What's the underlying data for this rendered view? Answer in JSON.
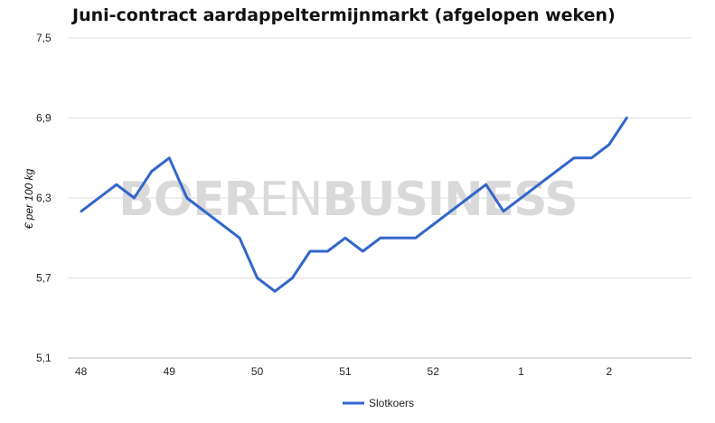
{
  "chart_data": {
    "type": "line",
    "title": "Juni-contract aardappeltermijnmarkt (afgelopen weken)",
    "xlabel": "",
    "ylabel": "€ per 100 kg",
    "x_tick_labels": [
      "48",
      "49",
      "50",
      "51",
      "52",
      "1",
      "2"
    ],
    "y_tick_labels": [
      "7,5",
      "6,9",
      "6,3",
      "5,7",
      "5,1"
    ],
    "ylim": [
      5.1,
      7.5
    ],
    "grid": true,
    "legend_position": "bottom",
    "series": [
      {
        "name": "Slotkoers",
        "color": "#3366cc",
        "x": [
          48.0,
          48.4,
          48.6,
          48.8,
          49.0,
          49.2,
          49.8,
          50.0,
          50.2,
          50.4,
          50.6,
          50.8,
          51.0,
          51.2,
          51.4,
          51.6,
          51.8,
          52.0,
          52.2,
          52.4,
          52.6,
          52.8,
          53.0,
          53.2,
          53.4,
          53.6,
          53.8,
          54.0,
          54.2
        ],
        "values": [
          6.2,
          6.4,
          6.3,
          6.5,
          6.6,
          6.3,
          6.0,
          5.7,
          5.6,
          5.7,
          5.9,
          5.9,
          6.0,
          5.9,
          6.0,
          6.0,
          6.0,
          6.1,
          6.2,
          6.3,
          6.4,
          6.2,
          6.3,
          6.4,
          6.5,
          6.6,
          6.6,
          6.7,
          6.9
        ]
      }
    ]
  },
  "watermark": {
    "part1": "BOER",
    "part2": "EN",
    "part3": "BUSINESS"
  }
}
